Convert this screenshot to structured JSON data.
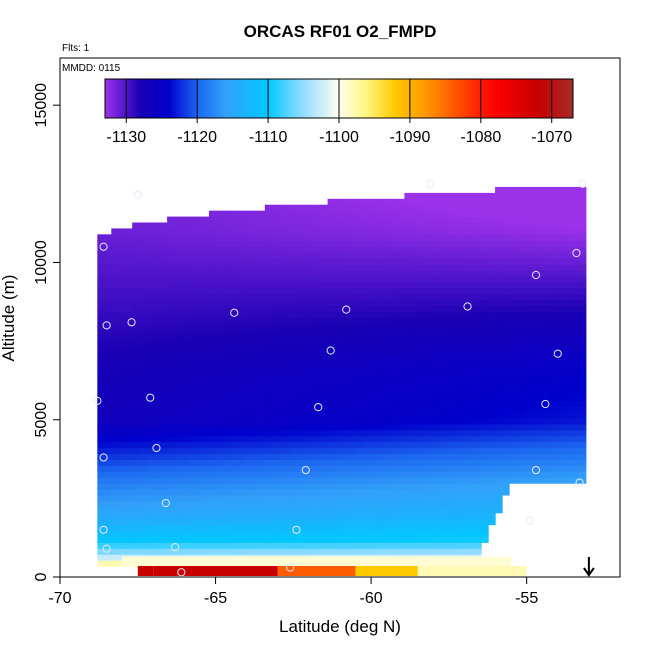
{
  "chart_data": {
    "type": "heatmap",
    "title": "ORCAS RF01 O2_FMPD",
    "corner_labels": {
      "flights": "Flts: 1",
      "date": "MMDD: 0115"
    },
    "xlabel": "Latitude (deg N)",
    "ylabel": "Altitude (m)",
    "xlim": [
      -70,
      -52
    ],
    "ylim": [
      0,
      16500
    ],
    "x_ticks": [
      -70,
      -65,
      -60,
      -55
    ],
    "x_tick_labels": [
      "-70",
      "-65",
      "-60",
      "-55"
    ],
    "y_ticks": [
      0,
      5000,
      10000,
      15000
    ],
    "y_tick_labels": [
      "0",
      "5000",
      "10000",
      "15000"
    ],
    "colorbar": {
      "range": [
        -1133,
        -1067
      ],
      "ticks": [
        -1130,
        -1120,
        -1110,
        -1100,
        -1090,
        -1080,
        -1070
      ],
      "tick_labels": [
        "-1130",
        "-1120",
        "-1110",
        "-1100",
        "-1090",
        "-1080",
        "-1070"
      ],
      "stops": [
        {
          "v": -1133,
          "c": "#9a32ea"
        },
        {
          "v": -1128,
          "c": "#1a00b4"
        },
        {
          "v": -1124,
          "c": "#0000cd"
        },
        {
          "v": -1120,
          "c": "#1c66f0"
        },
        {
          "v": -1116,
          "c": "#32a0fa"
        },
        {
          "v": -1110,
          "c": "#00c8ff"
        },
        {
          "v": -1105,
          "c": "#96dcff"
        },
        {
          "v": -1100,
          "c": "#fffff0"
        },
        {
          "v": -1096,
          "c": "#fff37a"
        },
        {
          "v": -1092,
          "c": "#ffc800"
        },
        {
          "v": -1088,
          "c": "#ff9b00"
        },
        {
          "v": -1082,
          "c": "#ff3c00"
        },
        {
          "v": -1078,
          "c": "#ff0000"
        },
        {
          "v": -1072,
          "c": "#c80000"
        },
        {
          "v": -1067,
          "c": "#a52a2a"
        }
      ]
    },
    "profile_levels": [
      {
        "alt": 0,
        "value": -1096
      },
      {
        "alt": 300,
        "value": -1094
      },
      {
        "alt": 700,
        "value": -1104
      },
      {
        "alt": 1200,
        "value": -1110
      },
      {
        "alt": 2000,
        "value": -1114
      },
      {
        "alt": 3000,
        "value": -1117
      },
      {
        "alt": 4000,
        "value": -1121
      },
      {
        "alt": 5000,
        "value": -1125
      },
      {
        "alt": 6500,
        "value": -1126
      },
      {
        "alt": 8000,
        "value": -1128
      },
      {
        "alt": 9500,
        "value": -1130
      },
      {
        "alt": 11000,
        "value": -1132
      },
      {
        "alt": 12500,
        "value": -1133
      }
    ],
    "surface_band": [
      {
        "lat_start": -67.0,
        "lat_end": -63.0,
        "value": -1072
      },
      {
        "lat_start": -63.0,
        "lat_end": -60.5,
        "value": -1084
      },
      {
        "lat_start": -60.5,
        "lat_end": -58.5,
        "value": -1092
      },
      {
        "lat_start": -58.5,
        "lat_end": -55.0,
        "value": -1098
      }
    ],
    "observations": [
      {
        "lat": -68.8,
        "alt": 5600
      },
      {
        "lat": -68.6,
        "alt": 10500
      },
      {
        "lat": -68.5,
        "alt": 8000
      },
      {
        "lat": -68.6,
        "alt": 3800
      },
      {
        "lat": -68.6,
        "alt": 1500
      },
      {
        "lat": -68.5,
        "alt": 900
      },
      {
        "lat": -67.5,
        "alt": 12150
      },
      {
        "lat": -67.7,
        "alt": 8100
      },
      {
        "lat": -67.1,
        "alt": 5700
      },
      {
        "lat": -66.9,
        "alt": 4100
      },
      {
        "lat": -66.6,
        "alt": 2350
      },
      {
        "lat": -66.3,
        "alt": 950
      },
      {
        "lat": -66.1,
        "alt": 150
      },
      {
        "lat": -64.4,
        "alt": 8400
      },
      {
        "lat": -62.6,
        "alt": 300
      },
      {
        "lat": -62.4,
        "alt": 1500
      },
      {
        "lat": -62.1,
        "alt": 3400
      },
      {
        "lat": -61.7,
        "alt": 5400
      },
      {
        "lat": -61.3,
        "alt": 7200
      },
      {
        "lat": -60.8,
        "alt": 8500
      },
      {
        "lat": -58.1,
        "alt": 12500
      },
      {
        "lat": -56.9,
        "alt": 8600
      },
      {
        "lat": -54.7,
        "alt": 9600
      },
      {
        "lat": -54.7,
        "alt": 3400
      },
      {
        "lat": -54.4,
        "alt": 5500
      },
      {
        "lat": -54.9,
        "alt": 1800
      },
      {
        "lat": -54.0,
        "alt": 7100
      },
      {
        "lat": -53.4,
        "alt": 10300
      },
      {
        "lat": -53.3,
        "alt": 3000
      },
      {
        "lat": -53.2,
        "alt": 12500
      }
    ],
    "wind_arrow": {
      "lat": -53.0,
      "direction": "down"
    }
  }
}
